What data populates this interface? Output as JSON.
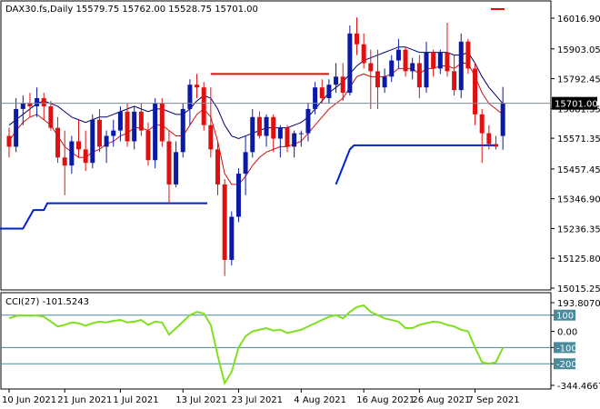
{
  "main_panel": {
    "header": "DAX30.fs,Daily  15579.75 15762.00 15528.75 15701.00",
    "price_labels": [
      "16016.90",
      "15903.05",
      "15792.45",
      "15681.35",
      "15571.35",
      "15457.45",
      "15346.90",
      "15236.35",
      "15125.80",
      "15015.25"
    ],
    "current_price": "15701.00"
  },
  "cci_panel": {
    "header": "CCI(27) -101.5243",
    "axis_labels": [
      "193.8070",
      "100",
      "0.00",
      "-100",
      "-200",
      "-344.4667"
    ],
    "boxed_levels": [
      "100",
      "-100",
      "-200"
    ]
  },
  "date_labels": [
    "10 Jun 2021",
    "21 Jun 2021",
    "1 Jul 2021",
    "13 Jul 2021",
    "23 Jul 2021",
    "4 Aug 2021",
    "16 Aug 2021",
    "26 Aug 2021",
    "7 Sep 2021"
  ],
  "colors": {
    "bull": "#0a1aa6",
    "bear": "#e01010",
    "ma_fast": "#d01010",
    "ma_slow": "#00006e",
    "support_line": "#0022cc",
    "resistance_line": "#e01010",
    "cci_line": "#80e020",
    "cci_levels": "#4a8a9a",
    "price_tag_bg": "#000000"
  },
  "chart_data": {
    "type": "candlestick",
    "symbol": "DAX30.fs",
    "timeframe": "Daily",
    "last_bar": {
      "open": 15579.75,
      "high": 15762.0,
      "low": 15528.75,
      "close": 15701.0
    },
    "price_range": [
      15015.25,
      16016.9
    ],
    "candles": [
      [
        15580,
        15610,
        15500,
        15540
      ],
      [
        15540,
        15720,
        15520,
        15680
      ],
      [
        15680,
        15730,
        15620,
        15700
      ],
      [
        15700,
        15740,
        15650,
        15690
      ],
      [
        15690,
        15760,
        15650,
        15720
      ],
      [
        15720,
        15740,
        15640,
        15690
      ],
      [
        15690,
        15710,
        15600,
        15610
      ],
      [
        15610,
        15650,
        15480,
        15500
      ],
      [
        15500,
        15600,
        15360,
        15470
      ],
      [
        15470,
        15580,
        15440,
        15560
      ],
      [
        15560,
        15640,
        15500,
        15530
      ],
      [
        15530,
        15600,
        15450,
        15480
      ],
      [
        15480,
        15660,
        15460,
        15640
      ],
      [
        15640,
        15680,
        15520,
        15540
      ],
      [
        15540,
        15600,
        15480,
        15580
      ],
      [
        15580,
        15640,
        15540,
        15600
      ],
      [
        15600,
        15690,
        15560,
        15670
      ],
      [
        15670,
        15700,
        15540,
        15560
      ],
      [
        15560,
        15690,
        15530,
        15670
      ],
      [
        15670,
        15700,
        15580,
        15600
      ],
      [
        15600,
        15630,
        15470,
        15490
      ],
      [
        15490,
        15720,
        15460,
        15700
      ],
      [
        15700,
        15720,
        15540,
        15560
      ],
      [
        15560,
        15600,
        15330,
        15400
      ],
      [
        15400,
        15560,
        15390,
        15520
      ],
      [
        15520,
        15700,
        15500,
        15680
      ],
      [
        15680,
        15790,
        15620,
        15770
      ],
      [
        15770,
        15810,
        15720,
        15760
      ],
      [
        15760,
        15780,
        15600,
        15620
      ],
      [
        15620,
        15760,
        15500,
        15530
      ],
      [
        15530,
        15560,
        15360,
        15400
      ],
      [
        15400,
        15420,
        15060,
        15120
      ],
      [
        15120,
        15300,
        15100,
        15280
      ],
      [
        15280,
        15460,
        15260,
        15440
      ],
      [
        15440,
        15580,
        15360,
        15520
      ],
      [
        15520,
        15680,
        15500,
        15650
      ],
      [
        15650,
        15670,
        15570,
        15580
      ],
      [
        15580,
        15660,
        15540,
        15650
      ],
      [
        15650,
        15660,
        15520,
        15570
      ],
      [
        15570,
        15620,
        15500,
        15610
      ],
      [
        15610,
        15620,
        15520,
        15540
      ],
      [
        15540,
        15600,
        15500,
        15590
      ],
      [
        15590,
        15600,
        15540,
        15590
      ],
      [
        15590,
        15700,
        15560,
        15680
      ],
      [
        15680,
        15780,
        15660,
        15760
      ],
      [
        15760,
        15790,
        15700,
        15720
      ],
      [
        15720,
        15790,
        15700,
        15770
      ],
      [
        15770,
        15850,
        15740,
        15800
      ],
      [
        15800,
        15850,
        15710,
        15740
      ],
      [
        15740,
        15990,
        15730,
        15960
      ],
      [
        15960,
        16020,
        15880,
        15920
      ],
      [
        15920,
        15960,
        15830,
        15850
      ],
      [
        15850,
        15900,
        15680,
        15820
      ],
      [
        15820,
        15900,
        15680,
        15760
      ],
      [
        15760,
        15830,
        15740,
        15800
      ],
      [
        15800,
        15880,
        15780,
        15860
      ],
      [
        15860,
        15940,
        15830,
        15900
      ],
      [
        15900,
        15910,
        15800,
        15820
      ],
      [
        15820,
        15870,
        15790,
        15850
      ],
      [
        15850,
        15880,
        15720,
        15760
      ],
      [
        15760,
        15930,
        15740,
        15890
      ],
      [
        15890,
        15900,
        15800,
        15830
      ],
      [
        15830,
        15900,
        15810,
        15890
      ],
      [
        15890,
        16000,
        15800,
        15820
      ],
      [
        15820,
        15880,
        15730,
        15750
      ],
      [
        15750,
        15960,
        15720,
        15930
      ],
      [
        15930,
        15940,
        15810,
        15830
      ],
      [
        15830,
        15850,
        15620,
        15660
      ],
      [
        15660,
        15680,
        15480,
        15590
      ],
      [
        15590,
        15620,
        15530,
        15550
      ],
      [
        15550,
        15580,
        15530,
        15540
      ],
      [
        15579.75,
        15762,
        15528.75,
        15701
      ]
    ],
    "ma_fast": [
      15560,
      15600,
      15630,
      15650,
      15660,
      15640,
      15620,
      15580,
      15540,
      15520,
      15500,
      15500,
      15520,
      15530,
      15550,
      15560,
      15580,
      15590,
      15610,
      15610,
      15600,
      15620,
      15620,
      15600,
      15580,
      15580,
      15620,
      15660,
      15680,
      15650,
      15560,
      15440,
      15400,
      15400,
      15430,
      15470,
      15500,
      15520,
      15530,
      15540,
      15540,
      15550,
      15560,
      15590,
      15620,
      15650,
      15680,
      15700,
      15720,
      15760,
      15800,
      15810,
      15800,
      15800,
      15800,
      15810,
      15830,
      15830,
      15830,
      15810,
      15830,
      15830,
      15840,
      15840,
      15830,
      15850,
      15850,
      15800,
      15740,
      15700,
      15680,
      15660
    ],
    "ma_slow": [
      15620,
      15640,
      15660,
      15680,
      15700,
      15710,
      15700,
      15690,
      15670,
      15650,
      15640,
      15630,
      15640,
      15650,
      15650,
      15660,
      15670,
      15680,
      15690,
      15680,
      15670,
      15680,
      15680,
      15670,
      15660,
      15660,
      15680,
      15710,
      15730,
      15720,
      15680,
      15620,
      15580,
      15570,
      15580,
      15590,
      15600,
      15610,
      15610,
      15610,
      15610,
      15620,
      15630,
      15650,
      15680,
      15710,
      15740,
      15760,
      15780,
      15810,
      15840,
      15860,
      15870,
      15880,
      15890,
      15900,
      15910,
      15910,
      15900,
      15890,
      15890,
      15890,
      15890,
      15890,
      15880,
      15880,
      15890,
      15850,
      15800,
      15760,
      15730,
      15700
    ],
    "support_line_left": {
      "from": 15236.35,
      "to": 15330
    },
    "support_line_right": {
      "from": 15400,
      "to": 15545
    },
    "resistance_line": 15810,
    "cci_values": [
      80,
      95,
      98,
      96,
      98,
      90,
      60,
      30,
      40,
      55,
      50,
      35,
      50,
      60,
      55,
      65,
      70,
      55,
      60,
      70,
      40,
      60,
      55,
      -20,
      20,
      60,
      100,
      120,
      110,
      40,
      -150,
      -320,
      -250,
      -100,
      -30,
      0,
      10,
      20,
      5,
      10,
      -10,
      0,
      10,
      30,
      50,
      70,
      90,
      100,
      80,
      120,
      150,
      160,
      120,
      100,
      80,
      70,
      60,
      20,
      20,
      40,
      50,
      60,
      55,
      40,
      30,
      10,
      0,
      -100,
      -190,
      -200,
      -190,
      -101.52
    ],
    "cci_range": [
      -344.4667,
      193.807
    ],
    "cci_levels": [
      100,
      -100,
      -200
    ]
  }
}
